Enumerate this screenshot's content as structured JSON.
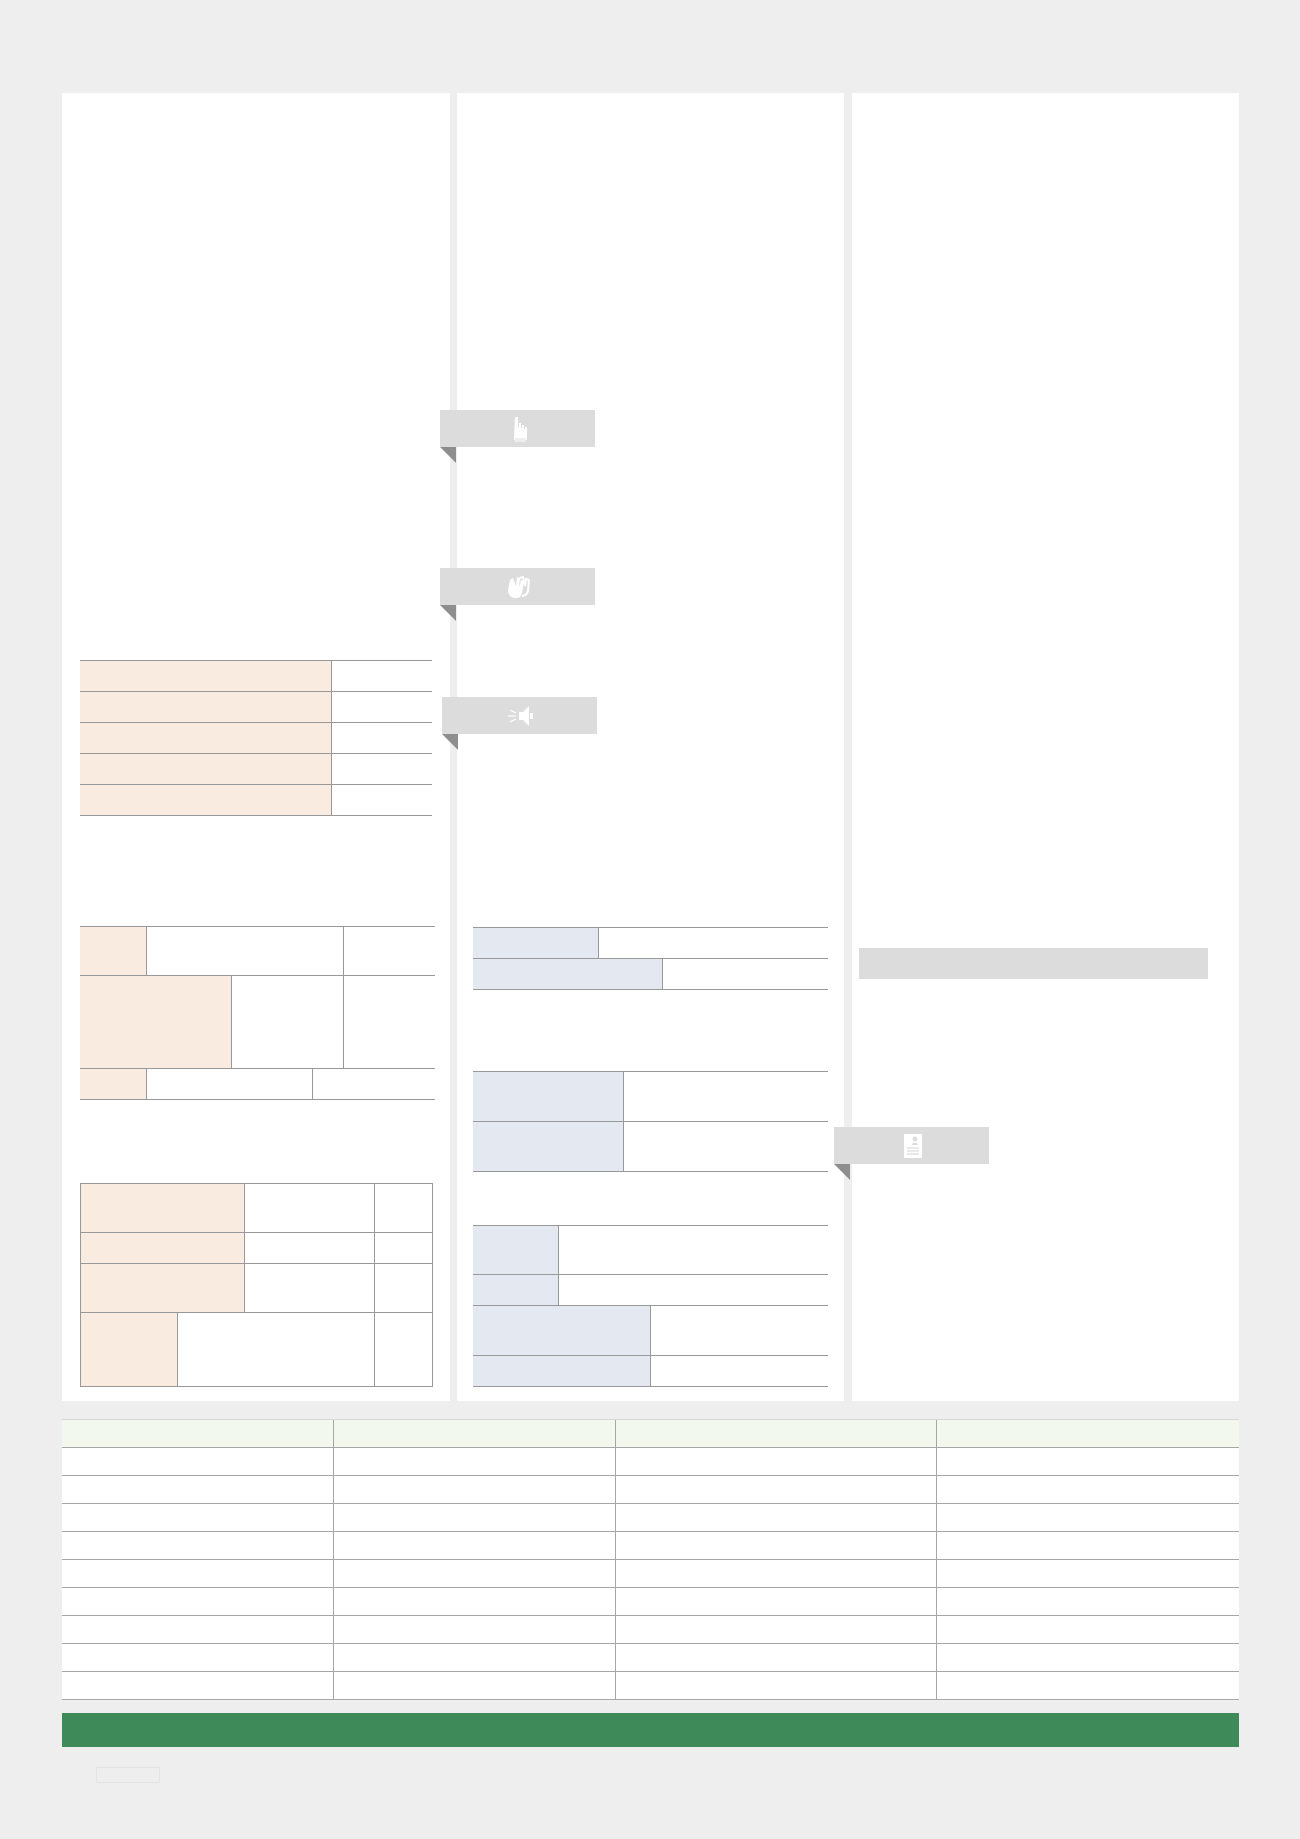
{
  "page": {
    "background": "#eeeeee",
    "panel_background": "#ffffff"
  },
  "colors": {
    "peach_cell": "#f9ebdf",
    "blue_cell": "#e4e8f1",
    "table_header": "#f2f8ee",
    "footer_bar": "#3e8a58",
    "tag_background": "#dcdcdc",
    "tag_fold": "#8e8e8e"
  },
  "tags": [
    {
      "icon": "pointing-hand-icon"
    },
    {
      "icon": "clapping-hands-icon"
    },
    {
      "icon": "speaker-icon"
    },
    {
      "icon": "document-icon"
    }
  ],
  "left_tables": [
    {
      "rows": 5,
      "columns": 2,
      "fill": "peach"
    },
    {
      "rows": 3,
      "columns": 3,
      "fill": "peach"
    },
    {
      "rows": 4,
      "columns": 3,
      "fill": "peach"
    }
  ],
  "middle_tables": [
    {
      "rows": 2,
      "columns": 2,
      "fill": "blue"
    },
    {
      "rows": 2,
      "columns": 2,
      "fill": "blue"
    },
    {
      "rows": 4,
      "columns": 2,
      "fill": "blue"
    }
  ],
  "bottom_table": {
    "columns": 4,
    "rows": 10
  }
}
